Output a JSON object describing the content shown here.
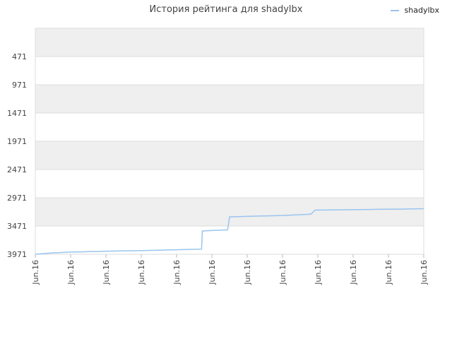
{
  "chart_data": {
    "type": "line",
    "title": "История рейтинга для shadylbx",
    "series": [
      {
        "name": "shadylbx",
        "color": "#99c4ee",
        "points": [
          [
            0.0,
            3971
          ],
          [
            0.02,
            3960
          ],
          [
            0.04,
            3950
          ],
          [
            0.06,
            3942
          ],
          [
            0.08,
            3935
          ],
          [
            0.1,
            3930
          ],
          [
            0.12,
            3928
          ],
          [
            0.14,
            3925
          ],
          [
            0.16,
            3922
          ],
          [
            0.18,
            3918
          ],
          [
            0.2,
            3915
          ],
          [
            0.22,
            3912
          ],
          [
            0.24,
            3910
          ],
          [
            0.26,
            3908
          ],
          [
            0.28,
            3905
          ],
          [
            0.3,
            3902
          ],
          [
            0.32,
            3898
          ],
          [
            0.34,
            3895
          ],
          [
            0.36,
            3892
          ],
          [
            0.38,
            3888
          ],
          [
            0.4,
            3885
          ],
          [
            0.42,
            3882
          ],
          [
            0.428,
            3880
          ],
          [
            0.43,
            3560
          ],
          [
            0.44,
            3555
          ],
          [
            0.46,
            3550
          ],
          [
            0.48,
            3545
          ],
          [
            0.49,
            3540
          ],
          [
            0.495,
            3540
          ],
          [
            0.5,
            3310
          ],
          [
            0.52,
            3305
          ],
          [
            0.55,
            3300
          ],
          [
            0.58,
            3295
          ],
          [
            0.61,
            3290
          ],
          [
            0.64,
            3285
          ],
          [
            0.67,
            3275
          ],
          [
            0.7,
            3265
          ],
          [
            0.71,
            3260
          ],
          [
            0.72,
            3190
          ],
          [
            0.74,
            3188
          ],
          [
            0.76,
            3186
          ],
          [
            0.8,
            3184
          ],
          [
            0.82,
            3182
          ],
          [
            0.84,
            3180
          ],
          [
            0.86,
            3178
          ],
          [
            0.88,
            3176
          ],
          [
            0.9,
            3174
          ],
          [
            0.94,
            3172
          ],
          [
            0.96,
            3170
          ],
          [
            1.0,
            3165
          ]
        ]
      }
    ],
    "y_ticks": [
      "471",
      "971",
      "1471",
      "1971",
      "2471",
      "2971",
      "3471",
      "3971"
    ],
    "y_tick_values": [
      471,
      971,
      1471,
      1971,
      2471,
      2971,
      3471,
      3971
    ],
    "ylim": [
      -29,
      3971
    ],
    "y_inverted": true,
    "x_ticks": [
      "Jun.16",
      "Jun.16",
      "Jun.16",
      "Jun.16",
      "Jun.16",
      "Jun.16",
      "Jun.16",
      "Jun.16",
      "Jun.16",
      "Jun.16",
      "Jun.16",
      "Jun.16"
    ],
    "grid": true,
    "legend_position": "top-right",
    "band_colors": [
      "#efefef",
      "#ffffff"
    ]
  }
}
